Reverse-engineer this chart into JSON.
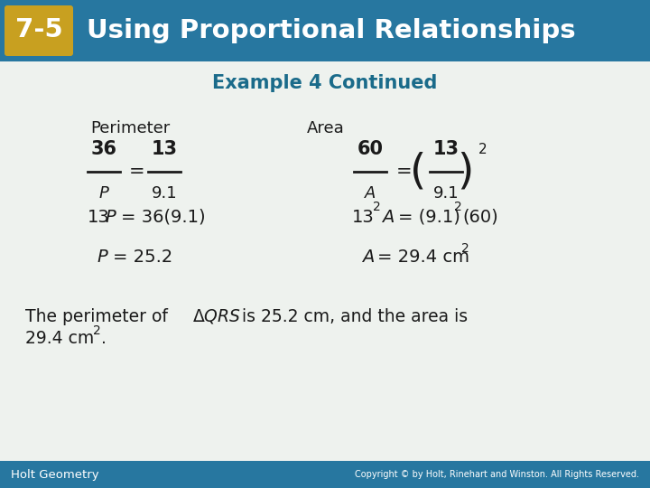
{
  "header_bg_color": "#2777a0",
  "header_text": "Using Proportional Relationships",
  "header_badge_bg": "#c8a020",
  "header_badge_text": "7-5",
  "subtitle": "Example 4 Continued",
  "subtitle_color": "#1a6b8a",
  "body_bg_color": "#eef2ee",
  "footer_bg_color": "#2777a0",
  "footer_left_text": "Holt Geometry",
  "footer_right_text": "Copyright © by Holt, Rinehart and Winston. All Rights Reserved.",
  "perimeter_label": "Perimeter",
  "area_label": "Area",
  "content_text_color": "#1a1a1a"
}
